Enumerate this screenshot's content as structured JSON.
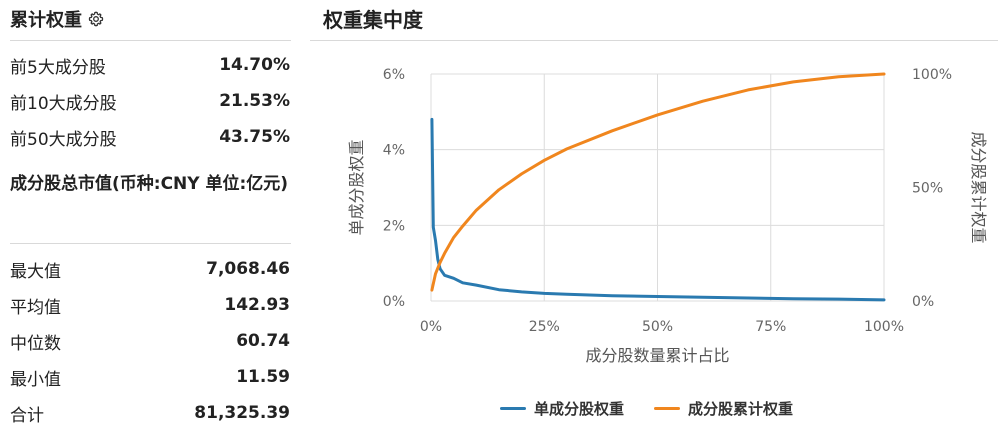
{
  "left_panel": {
    "title": "累计权重",
    "concentration": [
      {
        "label": "前5大成分股",
        "value": "14.70%"
      },
      {
        "label": "前10大成分股",
        "value": "21.53%"
      },
      {
        "label": "前50大成分股",
        "value": "43.75%"
      }
    ],
    "market_cap_title": "成分股总市值(币种:CNY 单位:亿元)",
    "market_cap": [
      {
        "label": "最大值",
        "value": "7,068.46"
      },
      {
        "label": "平均值",
        "value": "142.93"
      },
      {
        "label": "中位数",
        "value": "60.74"
      },
      {
        "label": "最小值",
        "value": "11.59"
      },
      {
        "label": "合计",
        "value": "81,325.39"
      }
    ]
  },
  "chart_data": {
    "type": "line",
    "title": "权重集中度",
    "xlabel": "成分股数量累计占比",
    "ylabel_left": "单成分股权重",
    "ylabel_right": "成分股累计权重",
    "x_ticks": [
      "0%",
      "25%",
      "50%",
      "75%",
      "100%"
    ],
    "y_left_ticks": [
      "0%",
      "2%",
      "4%",
      "6%"
    ],
    "y_right_ticks": [
      "0%",
      "50%",
      "100%"
    ],
    "xlim": [
      0,
      100
    ],
    "ylim_left": [
      0,
      6
    ],
    "ylim_right": [
      0,
      100
    ],
    "grid": true,
    "legend_position": "bottom",
    "series": [
      {
        "name": "单成分股权重",
        "axis": "left",
        "color": "#2a7ab0",
        "x": [
          0.2,
          0.5,
          1,
          1.5,
          2,
          3,
          5,
          7,
          10,
          15,
          20,
          25,
          30,
          40,
          50,
          60,
          70,
          80,
          90,
          100
        ],
        "y": [
          4.8,
          1.95,
          1.6,
          1.1,
          0.85,
          0.68,
          0.6,
          0.48,
          0.42,
          0.3,
          0.24,
          0.2,
          0.18,
          0.14,
          0.12,
          0.1,
          0.08,
          0.06,
          0.05,
          0.03
        ]
      },
      {
        "name": "成分股累计权重",
        "axis": "right",
        "color": "#f0861e",
        "x": [
          0.2,
          1,
          2,
          3,
          5,
          7,
          10,
          15,
          20,
          25,
          30,
          40,
          50,
          60,
          70,
          80,
          90,
          100
        ],
        "y": [
          4.8,
          12,
          17,
          21,
          28,
          33,
          40,
          49,
          56,
          62,
          67,
          75,
          82,
          88,
          93,
          96.5,
          98.8,
          100
        ]
      }
    ]
  }
}
